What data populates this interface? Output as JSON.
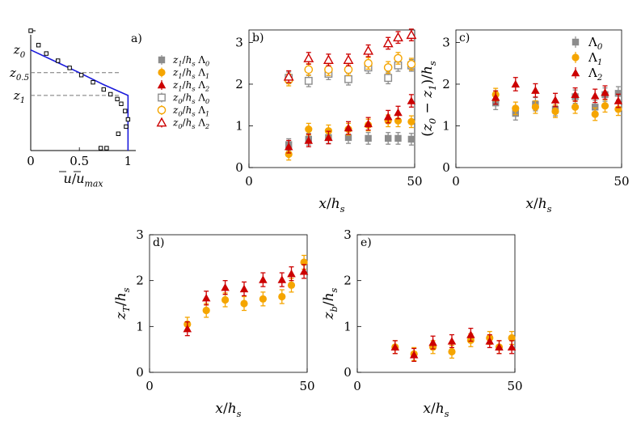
{
  "chart_data": [
    {
      "id": "a",
      "type": "line",
      "panel_label": "a)",
      "xlabel": "ū/ū_max",
      "x_ticks": [
        "0",
        "0.5",
        "1"
      ],
      "y_tick_labels": [
        "z0",
        "z0.5",
        "z1"
      ],
      "ylim": [
        0,
        1
      ],
      "xlim": [
        0,
        1.08
      ],
      "profile_line": {
        "x": [
          0.0,
          0.25,
          0.5,
          0.75,
          1.0,
          1.0
        ],
        "y": [
          0.84,
          0.745,
          0.65,
          0.55,
          0.46,
          0.0
        ]
      },
      "measured_points": {
        "x": [
          0.0,
          0.08,
          0.16,
          0.28,
          0.4,
          0.52,
          0.64,
          0.75,
          0.82,
          0.89,
          0.93,
          0.97,
          1.0,
          0.98,
          0.9,
          0.72,
          0.78
        ],
        "y": [
          1.0,
          0.88,
          0.81,
          0.75,
          0.69,
          0.63,
          0.57,
          0.51,
          0.47,
          0.43,
          0.39,
          0.33,
          0.26,
          0.2,
          0.14,
          0.02,
          0.02
        ]
      },
      "dashed_levels": [
        {
          "label": "z0.5",
          "y": 0.65
        },
        {
          "label": "z1",
          "y": 0.46
        }
      ]
    },
    {
      "id": "b",
      "type": "scatter",
      "panel_label": "b)",
      "xlabel": "x/h_s",
      "ylabel": "",
      "xlim": [
        0,
        50
      ],
      "ylim": [
        0,
        3.3
      ],
      "x_ticks": [
        0,
        50
      ],
      "y_ticks": [
        0,
        1,
        2,
        3
      ],
      "x": [
        12,
        18,
        24,
        30,
        36,
        42,
        45,
        49
      ],
      "series": [
        {
          "name": "z1/hs Λ0",
          "marker": "square-filled",
          "color": "#8c8c8c",
          "values": [
            0.55,
            0.68,
            0.72,
            0.72,
            0.7,
            0.7,
            0.7,
            0.68
          ],
          "err": [
            0.14,
            0.14,
            0.14,
            0.14,
            0.14,
            0.14,
            0.14,
            0.14
          ]
        },
        {
          "name": "z1/hs Λ1",
          "marker": "circle-filled",
          "color": "#f5a500",
          "values": [
            0.32,
            0.92,
            0.88,
            0.92,
            1.02,
            1.12,
            1.12,
            1.1
          ],
          "err": [
            0.14,
            0.14,
            0.14,
            0.14,
            0.14,
            0.14,
            0.14,
            0.14
          ]
        },
        {
          "name": "z1/hs Λ2",
          "marker": "triangle-filled",
          "color": "#cc0000",
          "values": [
            0.5,
            0.65,
            0.72,
            0.95,
            1.05,
            1.22,
            1.32,
            1.6
          ],
          "err": [
            0.15,
            0.15,
            0.15,
            0.15,
            0.15,
            0.15,
            0.15,
            0.15
          ]
        },
        {
          "name": "z0/hs Λ0",
          "marker": "square-open",
          "color": "#8c8c8c",
          "values": [
            2.15,
            2.08,
            2.25,
            2.12,
            2.4,
            2.15,
            2.45,
            2.45
          ],
          "err": [
            0.14,
            0.14,
            0.14,
            0.14,
            0.14,
            0.14,
            0.14,
            0.14
          ]
        },
        {
          "name": "z0/hs Λ1",
          "marker": "circle-open",
          "color": "#f5a500",
          "values": [
            2.1,
            2.35,
            2.35,
            2.35,
            2.5,
            2.4,
            2.62,
            2.48
          ],
          "err": [
            0.14,
            0.14,
            0.14,
            0.14,
            0.14,
            0.14,
            0.14,
            0.14
          ]
        },
        {
          "name": "z0/hs Λ2",
          "marker": "triangle-open",
          "color": "#cc0000",
          "values": [
            2.18,
            2.62,
            2.58,
            2.58,
            2.8,
            2.98,
            3.12,
            3.18
          ],
          "err": [
            0.14,
            0.14,
            0.14,
            0.14,
            0.14,
            0.14,
            0.14,
            0.14
          ]
        }
      ]
    },
    {
      "id": "c",
      "type": "scatter",
      "panel_label": "c)",
      "xlabel": "x/h_s",
      "ylabel": "(z0 − z1)/h_s",
      "xlim": [
        0,
        50
      ],
      "ylim": [
        0,
        3.3
      ],
      "x_ticks": [
        0,
        50
      ],
      "y_ticks": [
        0,
        1,
        2,
        3
      ],
      "x": [
        12,
        18,
        24,
        30,
        36,
        42,
        45,
        49
      ],
      "legend": [
        "Λ0",
        "Λ1",
        "Λ2"
      ],
      "series": [
        {
          "name": "Λ0",
          "marker": "square-filled",
          "color": "#8c8c8c",
          "values": [
            1.55,
            1.3,
            1.52,
            1.4,
            1.7,
            1.45,
            1.75,
            1.78
          ],
          "err": [
            0.16,
            0.16,
            0.16,
            0.16,
            0.16,
            0.16,
            0.16,
            0.16
          ]
        },
        {
          "name": "Λ1",
          "marker": "circle-filled",
          "color": "#f5a500",
          "values": [
            1.75,
            1.42,
            1.45,
            1.35,
            1.45,
            1.28,
            1.48,
            1.4
          ],
          "err": [
            0.15,
            0.15,
            0.15,
            0.15,
            0.15,
            0.15,
            0.15,
            0.15
          ]
        },
        {
          "name": "Λ2",
          "marker": "triangle-filled",
          "color": "#cc0000",
          "values": [
            1.68,
            2.0,
            1.85,
            1.62,
            1.75,
            1.72,
            1.8,
            1.6
          ],
          "err": [
            0.16,
            0.16,
            0.16,
            0.16,
            0.16,
            0.16,
            0.16,
            0.16
          ]
        }
      ]
    },
    {
      "id": "d",
      "type": "scatter",
      "panel_label": "d)",
      "xlabel": "x/h_s",
      "ylabel": "z_T/h_s",
      "xlim": [
        0,
        50
      ],
      "ylim": [
        0,
        3
      ],
      "x_ticks": [
        0,
        50
      ],
      "y_ticks": [
        0,
        1,
        2,
        3
      ],
      "x": [
        12,
        18,
        24,
        30,
        36,
        42,
        45,
        49
      ],
      "series": [
        {
          "name": "Λ1",
          "marker": "circle-filled",
          "color": "#f5a500",
          "values": [
            1.05,
            1.35,
            1.58,
            1.5,
            1.6,
            1.65,
            1.9,
            2.4
          ],
          "err": [
            0.15,
            0.15,
            0.15,
            0.15,
            0.15,
            0.15,
            0.15,
            0.15
          ]
        },
        {
          "name": "Λ2",
          "marker": "triangle-filled",
          "color": "#cc0000",
          "values": [
            0.95,
            1.62,
            1.85,
            1.82,
            2.02,
            2.02,
            2.15,
            2.2
          ],
          "err": [
            0.15,
            0.15,
            0.15,
            0.15,
            0.15,
            0.15,
            0.15,
            0.15
          ]
        }
      ]
    },
    {
      "id": "e",
      "type": "scatter",
      "panel_label": "e)",
      "xlabel": "x/h_s",
      "ylabel": "z_b/h_s",
      "xlim": [
        0,
        50
      ],
      "ylim": [
        0,
        3
      ],
      "x_ticks": [
        0,
        50
      ],
      "y_ticks": [
        0,
        1,
        2,
        3
      ],
      "x": [
        12,
        18,
        24,
        30,
        36,
        42,
        45,
        49
      ],
      "series": [
        {
          "name": "Λ1",
          "marker": "circle-filled",
          "color": "#f5a500",
          "values": [
            0.55,
            0.4,
            0.55,
            0.45,
            0.7,
            0.75,
            0.55,
            0.75
          ],
          "err": [
            0.14,
            0.14,
            0.14,
            0.14,
            0.14,
            0.14,
            0.14,
            0.14
          ]
        },
        {
          "name": "Λ2",
          "marker": "triangle-filled",
          "color": "#cc0000",
          "values": [
            0.55,
            0.38,
            0.65,
            0.68,
            0.82,
            0.68,
            0.55,
            0.55
          ],
          "err": [
            0.14,
            0.14,
            0.14,
            0.14,
            0.14,
            0.14,
            0.14,
            0.14
          ]
        }
      ]
    }
  ],
  "legend_b": [
    {
      "label": "z1/hs Λ0"
    },
    {
      "label": "z1/hs Λ1"
    },
    {
      "label": "z1/hs Λ2"
    },
    {
      "label": "z0/hs Λ0"
    },
    {
      "label": "z0/hs Λ1"
    },
    {
      "label": "z0/hs Λ2"
    }
  ]
}
